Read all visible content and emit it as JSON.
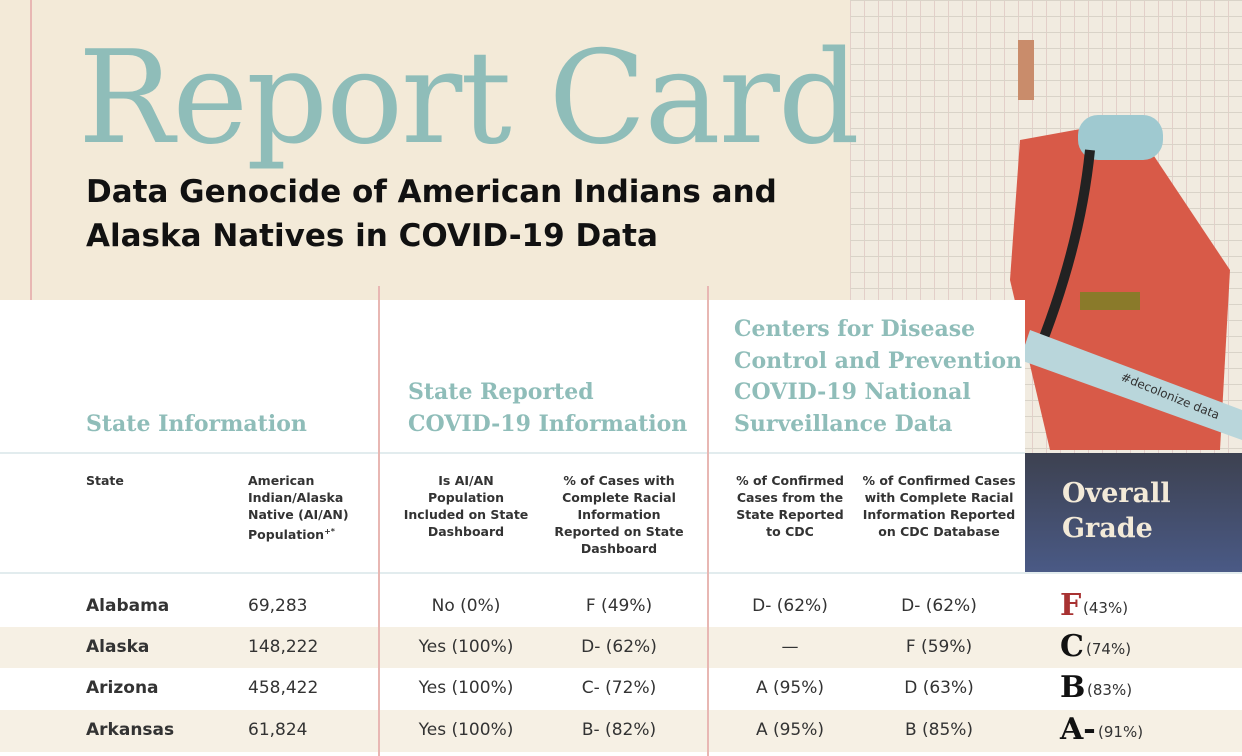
{
  "header": {
    "title": "Report Card",
    "subtitle_lines": [
      "Data Genocide of American Indians and",
      "Alaska Natives in COVID-19 Data"
    ]
  },
  "illustration": {
    "sash_text": "#decolonize data"
  },
  "groups": [
    {
      "lines": [
        "State Information"
      ]
    },
    {
      "lines": [
        "State Reported",
        "COVID-19 Information"
      ]
    },
    {
      "lines": [
        "Centers for Disease",
        "Control and Prevention",
        "COVID-19 National",
        "Surveillance Data"
      ]
    }
  ],
  "columns": [
    {
      "label": "State"
    },
    {
      "label": "American Indian/Alaska Native (AI/AN) Population",
      "mark": "+*"
    },
    {
      "label": "Is AI/AN Population Included on State Dashboard"
    },
    {
      "label": "% of Cases with Complete Racial Information Reported on State Dashboard"
    },
    {
      "label": "% of Confirmed Cases from the State Reported to CDC"
    },
    {
      "label": "% of Confirmed Cases with Complete Racial Information Reported on CDC Database"
    }
  ],
  "overall_grade": {
    "lines": [
      "Overall",
      "Grade"
    ]
  },
  "rows": [
    {
      "cells": [
        "Alabama",
        "69,283",
        "No (0%)",
        "F (49%)",
        "D- (62%)",
        "D- (62%)"
      ],
      "grade": "F",
      "grade_pct": "(43%)"
    },
    {
      "cells": [
        "Alaska",
        "148,222",
        "Yes (100%)",
        "D- (62%)",
        "—",
        "F (59%)"
      ],
      "grade": "C",
      "grade_pct": "(74%)"
    },
    {
      "cells": [
        "Arizona",
        "458,422",
        "Yes (100%)",
        "C- (72%)",
        "A (95%)",
        "D (63%)"
      ],
      "grade": "B",
      "grade_pct": "(83%)"
    },
    {
      "cells": [
        "Arkansas",
        "61,824",
        "Yes (100%)",
        "B- (82%)",
        "A (95%)",
        "B (85%)"
      ],
      "grade": "A-",
      "grade_pct": "(91%)"
    }
  ]
}
